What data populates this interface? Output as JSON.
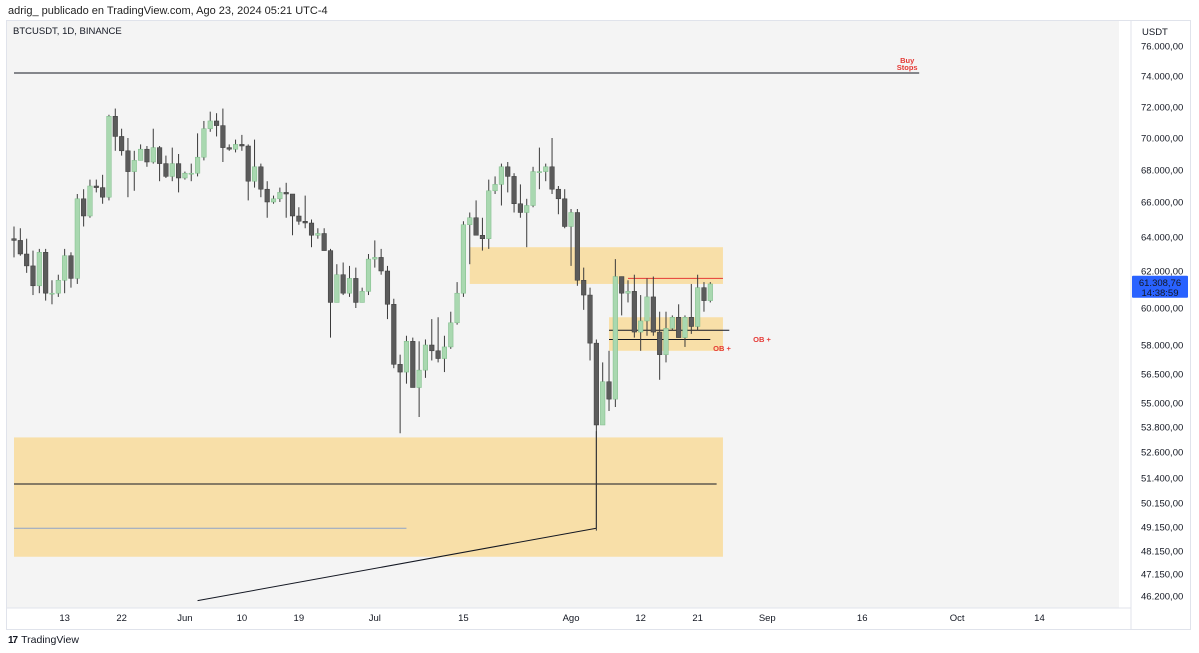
{
  "header": {
    "publisher_text": "adrig_ publicado en TradingView.com, Ago 23, 2024 05:21 UTC-4"
  },
  "chart_data": {
    "type": "candlestick",
    "symbol_line": "BTCUSDT, 1D, BINANCE",
    "currency": "USDT",
    "y_ticks": [
      "76.000,00",
      "74.000,00",
      "72.000,00",
      "70.000,00",
      "68.000,00",
      "66.000,00",
      "64.000,00",
      "62.000,00",
      "60.000,00",
      "58.000,00",
      "56.500,00",
      "55.000,00",
      "53.800,00",
      "52.600,00",
      "51.400,00",
      "50.150,00",
      "49.150,00",
      "48.150,00",
      "47.150,00",
      "46.200,00"
    ],
    "x_ticks": [
      {
        "label": "13",
        "date": "2024-05-13"
      },
      {
        "label": "22",
        "date": "2024-05-22"
      },
      {
        "label": "Jun",
        "date": "2024-06-01"
      },
      {
        "label": "10",
        "date": "2024-06-10"
      },
      {
        "label": "19",
        "date": "2024-06-19"
      },
      {
        "label": "Jul",
        "date": "2024-07-01"
      },
      {
        "label": "15",
        "date": "2024-07-15"
      },
      {
        "label": "Ago",
        "date": "2024-08-01"
      },
      {
        "label": "12",
        "date": "2024-08-12"
      },
      {
        "label": "21",
        "date": "2024-08-21"
      },
      {
        "label": "Sep",
        "date": "2024-09-01"
      },
      {
        "label": "16",
        "date": "2024-09-16"
      },
      {
        "label": "Oct",
        "date": "2024-10-01"
      },
      {
        "label": "14",
        "date": "2024-10-14"
      }
    ],
    "current_price": {
      "value": "61.308,76",
      "countdown": "14:38:59",
      "color": "#2962ff"
    },
    "colors": {
      "up": "#a9d8b0",
      "down": "#5b5b5b",
      "zone": "#f8dfa8",
      "annotation": "#e53935",
      "background": "#f4f4f4"
    },
    "annotations": [
      {
        "type": "hline",
        "price": 74200,
        "from": "2024-05-05",
        "to": "2024-09-25",
        "text_lines": [
          "Buy",
          "Stops"
        ],
        "text_color": "#e53935"
      },
      {
        "type": "zone",
        "top": 63400,
        "bottom": 61300,
        "from": "2024-07-16",
        "to": "2024-08-25"
      },
      {
        "type": "zone",
        "top": 59500,
        "bottom": 57700,
        "from": "2024-08-07",
        "to": "2024-08-25"
      },
      {
        "type": "zone",
        "top": 53300,
        "bottom": 47900,
        "from": "2024-05-05",
        "to": "2024-08-25"
      },
      {
        "type": "line",
        "price": 61600,
        "from": "2024-08-10",
        "to": "2024-08-25",
        "color": "#e53935"
      },
      {
        "type": "line",
        "price": 58800,
        "from": "2024-08-07",
        "to": "2024-08-26",
        "color": "#131722"
      },
      {
        "type": "line",
        "price": 58300,
        "from": "2024-08-07",
        "to": "2024-08-23",
        "color": "#131722",
        "label": "OB +"
      },
      {
        "type": "line",
        "price": 51100,
        "from": "2024-05-05",
        "to": "2024-08-24",
        "color": "#131722"
      },
      {
        "type": "line",
        "price": 49100,
        "from": "2024-05-05",
        "to": "2024-07-06",
        "color": "#8ea3c8"
      },
      {
        "type": "trend",
        "from_date": "2024-06-03",
        "from_price": 46000,
        "to_date": "2024-08-05",
        "to_price": 49100
      },
      {
        "type": "vline",
        "date": "2024-08-05",
        "from_price": 49100,
        "to_price": 53600
      }
    ],
    "ob_labels": [
      "OB +",
      "OB +"
    ],
    "ohlc": [
      [
        "2024-05-05",
        63900,
        64600,
        62800,
        63800
      ],
      [
        "2024-05-06",
        63800,
        64500,
        62900,
        63000
      ],
      [
        "2024-05-07",
        63000,
        63900,
        61900,
        62300
      ],
      [
        "2024-05-08",
        62300,
        63200,
        60700,
        61200
      ],
      [
        "2024-05-09",
        61200,
        63300,
        60800,
        63100
      ],
      [
        "2024-05-10",
        63100,
        63300,
        60400,
        60800
      ],
      [
        "2024-05-11",
        60800,
        61500,
        60200,
        60800
      ],
      [
        "2024-05-12",
        60800,
        61800,
        60600,
        61500
      ],
      [
        "2024-05-13",
        61500,
        63300,
        60800,
        62900
      ],
      [
        "2024-05-14",
        62900,
        63100,
        61100,
        61600
      ],
      [
        "2024-05-15",
        61600,
        66500,
        61300,
        66200
      ],
      [
        "2024-05-16",
        66200,
        66800,
        64600,
        65200
      ],
      [
        "2024-05-17",
        65200,
        67400,
        65100,
        67000
      ],
      [
        "2024-05-18",
        67000,
        67400,
        66600,
        66900
      ],
      [
        "2024-05-19",
        66900,
        67700,
        65900,
        66300
      ],
      [
        "2024-05-20",
        66300,
        71500,
        66100,
        71400
      ],
      [
        "2024-05-21",
        71400,
        71900,
        69200,
        70100
      ],
      [
        "2024-05-22",
        70100,
        70600,
        68900,
        69200
      ],
      [
        "2024-05-23",
        69200,
        70000,
        66300,
        67900
      ],
      [
        "2024-05-24",
        67900,
        69200,
        66700,
        68600
      ],
      [
        "2024-05-25",
        68600,
        69600,
        68600,
        69300
      ],
      [
        "2024-05-26",
        69300,
        69500,
        68200,
        68500
      ],
      [
        "2024-05-27",
        68500,
        70600,
        68400,
        69400
      ],
      [
        "2024-05-28",
        69400,
        69500,
        67300,
        68400
      ],
      [
        "2024-05-29",
        68400,
        68900,
        67500,
        67600
      ],
      [
        "2024-05-30",
        67600,
        69400,
        67300,
        68400
      ],
      [
        "2024-05-31",
        68400,
        69000,
        66600,
        67500
      ],
      [
        "2024-06-01",
        67500,
        67900,
        67400,
        67800
      ],
      [
        "2024-06-02",
        67800,
        68400,
        67300,
        67800
      ],
      [
        "2024-06-03",
        67800,
        70300,
        67600,
        68800
      ],
      [
        "2024-06-04",
        68800,
        71100,
        68600,
        70600
      ],
      [
        "2024-06-05",
        70600,
        71700,
        70400,
        71100
      ],
      [
        "2024-06-06",
        71100,
        71600,
        70100,
        70800
      ],
      [
        "2024-06-07",
        70800,
        71900,
        68500,
        69400
      ],
      [
        "2024-06-08",
        69400,
        69600,
        69200,
        69300
      ],
      [
        "2024-06-09",
        69300,
        69900,
        69100,
        69600
      ],
      [
        "2024-06-10",
        69600,
        70200,
        69200,
        69500
      ],
      [
        "2024-06-11",
        69500,
        69600,
        66100,
        67300
      ],
      [
        "2024-06-12",
        67300,
        69900,
        66900,
        68200
      ],
      [
        "2024-06-13",
        68200,
        68400,
        66300,
        66800
      ],
      [
        "2024-06-14",
        66800,
        67300,
        65100,
        66000
      ],
      [
        "2024-06-15",
        66000,
        66400,
        65900,
        66200
      ],
      [
        "2024-06-16",
        66200,
        66900,
        66000,
        66600
      ],
      [
        "2024-06-17",
        66600,
        67200,
        65100,
        66500
      ],
      [
        "2024-06-18",
        66500,
        66500,
        64100,
        65200
      ],
      [
        "2024-06-19",
        65200,
        65700,
        64700,
        64900
      ],
      [
        "2024-06-20",
        64900,
        66400,
        64500,
        64800
      ],
      [
        "2024-06-21",
        64800,
        65000,
        63400,
        64100
      ],
      [
        "2024-06-22",
        64100,
        64500,
        63900,
        64200
      ],
      [
        "2024-06-23",
        64200,
        64500,
        63200,
        63200
      ],
      [
        "2024-06-24",
        63200,
        63300,
        58400,
        60300
      ],
      [
        "2024-06-25",
        60300,
        62400,
        60300,
        61800
      ],
      [
        "2024-06-26",
        61800,
        62500,
        60700,
        60800
      ],
      [
        "2024-06-27",
        60800,
        62300,
        60600,
        61600
      ],
      [
        "2024-06-28",
        61600,
        62200,
        60000,
        60300
      ],
      [
        "2024-06-29",
        60300,
        61100,
        60300,
        60900
      ],
      [
        "2024-06-30",
        60900,
        63000,
        60700,
        62700
      ],
      [
        "2024-07-01",
        62700,
        63800,
        62200,
        62800
      ],
      [
        "2024-07-02",
        62800,
        63300,
        61800,
        62000
      ],
      [
        "2024-07-03",
        62000,
        62300,
        59400,
        60200
      ],
      [
        "2024-07-04",
        60200,
        60500,
        56800,
        57000
      ],
      [
        "2024-07-05",
        57000,
        57500,
        53500,
        56600
      ],
      [
        "2024-07-06",
        56600,
        58500,
        56000,
        58200
      ],
      [
        "2024-07-07",
        58200,
        58400,
        55800,
        55800
      ],
      [
        "2024-07-08",
        55800,
        58200,
        54300,
        56700
      ],
      [
        "2024-07-09",
        56700,
        58300,
        56300,
        58000
      ],
      [
        "2024-07-10",
        58000,
        59400,
        57200,
        57700
      ],
      [
        "2024-07-11",
        57700,
        59500,
        57100,
        57300
      ],
      [
        "2024-07-12",
        57300,
        58500,
        56600,
        57900
      ],
      [
        "2024-07-13",
        57900,
        59800,
        57800,
        59200
      ],
      [
        "2024-07-14",
        59200,
        61400,
        59100,
        60800
      ],
      [
        "2024-07-15",
        60800,
        64900,
        60600,
        64700
      ],
      [
        "2024-07-16",
        64700,
        65400,
        62400,
        65100
      ],
      [
        "2024-07-17",
        65100,
        66100,
        64200,
        64100
      ],
      [
        "2024-07-18",
        64100,
        65100,
        63200,
        63900
      ],
      [
        "2024-07-19",
        63900,
        67400,
        63300,
        66700
      ],
      [
        "2024-07-20",
        66700,
        67600,
        66500,
        67100
      ],
      [
        "2024-07-21",
        67100,
        68400,
        65800,
        68200
      ],
      [
        "2024-07-22",
        68200,
        68500,
        66600,
        67600
      ],
      [
        "2024-07-23",
        67600,
        67800,
        65400,
        65900
      ],
      [
        "2024-07-24",
        65900,
        67100,
        65100,
        65400
      ],
      [
        "2024-07-25",
        65400,
        66200,
        63400,
        65800
      ],
      [
        "2024-07-26",
        65800,
        68200,
        65700,
        67900
      ],
      [
        "2024-07-27",
        67900,
        69400,
        66800,
        67900
      ],
      [
        "2024-07-28",
        67900,
        68400,
        67300,
        68200
      ],
      [
        "2024-07-29",
        68200,
        70000,
        66500,
        66800
      ],
      [
        "2024-07-30",
        66800,
        67000,
        65300,
        66200
      ],
      [
        "2024-07-31",
        66200,
        66800,
        64500,
        64600
      ],
      [
        "2024-08-01",
        64600,
        65600,
        62300,
        65400
      ],
      [
        "2024-08-02",
        65400,
        65600,
        61200,
        61500
      ],
      [
        "2024-08-03",
        61500,
        62200,
        59900,
        60700
      ],
      [
        "2024-08-04",
        60700,
        61100,
        57200,
        58100
      ],
      [
        "2024-08-05",
        58100,
        58300,
        49000,
        53900
      ],
      [
        "2024-08-06",
        53900,
        57100,
        53900,
        56100
      ],
      [
        "2024-08-07",
        56100,
        57700,
        54600,
        55200
      ],
      [
        "2024-08-08",
        55200,
        62700,
        54800,
        61700
      ],
      [
        "2024-08-09",
        61700,
        61700,
        59600,
        60800
      ],
      [
        "2024-08-10",
        60800,
        61500,
        60300,
        60900
      ],
      [
        "2024-08-11",
        60900,
        61800,
        58400,
        58700
      ],
      [
        "2024-08-12",
        58700,
        60700,
        57700,
        59300
      ],
      [
        "2024-08-13",
        59300,
        61600,
        58500,
        60600
      ],
      [
        "2024-08-14",
        60600,
        61700,
        58500,
        58700
      ],
      [
        "2024-08-15",
        58700,
        59800,
        56200,
        57500
      ],
      [
        "2024-08-16",
        57500,
        59800,
        57100,
        58900
      ],
      [
        "2024-08-17",
        58900,
        59600,
        58800,
        59500
      ],
      [
        "2024-08-18",
        59500,
        60200,
        58400,
        58400
      ],
      [
        "2024-08-19",
        58400,
        59600,
        57900,
        59500
      ],
      [
        "2024-08-20",
        59500,
        61300,
        58600,
        59000
      ],
      [
        "2024-08-21",
        59000,
        61800,
        58800,
        61100
      ],
      [
        "2024-08-22",
        61100,
        61400,
        59800,
        60400
      ],
      [
        "2024-08-23",
        60400,
        61400,
        60300,
        61300
      ]
    ]
  },
  "footer": {
    "logo_mark": "17",
    "logo_text": "TradingView"
  }
}
